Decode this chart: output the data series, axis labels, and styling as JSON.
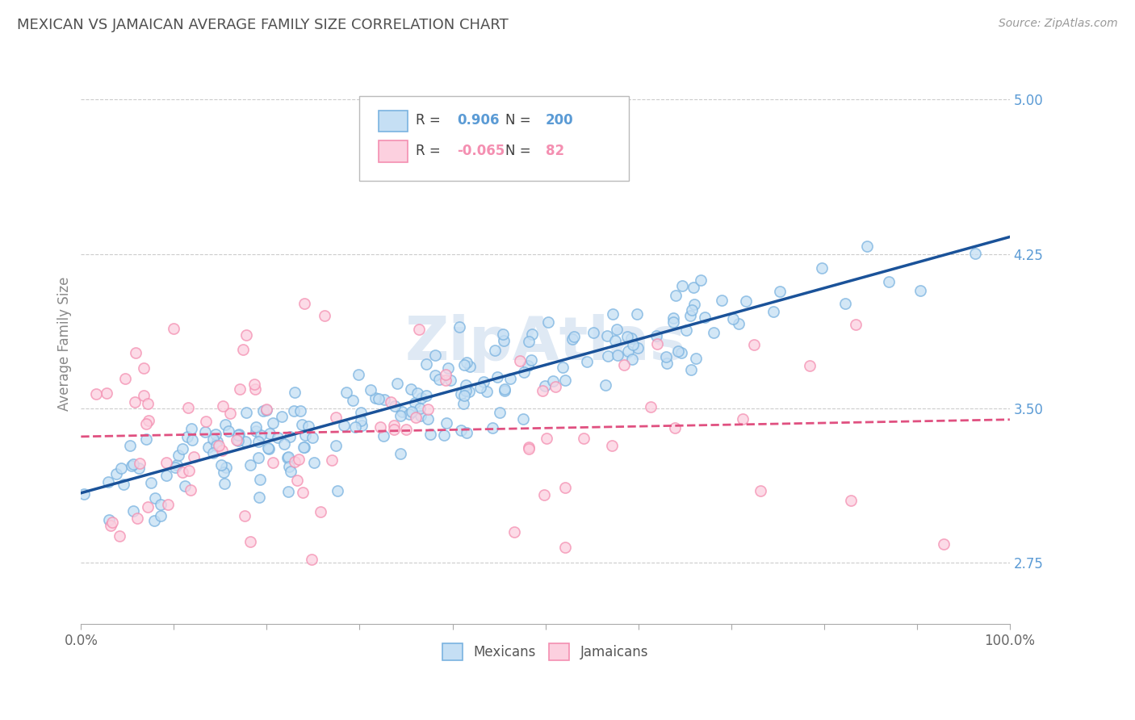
{
  "title": "MEXICAN VS JAMAICAN AVERAGE FAMILY SIZE CORRELATION CHART",
  "source": "Source: ZipAtlas.com",
  "ylabel": "Average Family Size",
  "right_yticks": [
    2.75,
    3.5,
    4.25,
    5.0
  ],
  "watermark": "ZipAtlas",
  "blue_color": "#7ab3e0",
  "pink_color": "#f48fb1",
  "blue_fill": "#c5dff4",
  "pink_fill": "#fcd0df",
  "blue_line_color": "#1a5299",
  "pink_line_color": "#e05080",
  "background_color": "#ffffff",
  "grid_color": "#cccccc",
  "title_color": "#505050",
  "right_axis_color": "#5b9bd5",
  "n_mexican": 200,
  "n_jamaican": 82,
  "legend_blue_R": "0.906",
  "legend_blue_N": "200",
  "legend_pink_R": "-0.065",
  "legend_pink_N": "82"
}
